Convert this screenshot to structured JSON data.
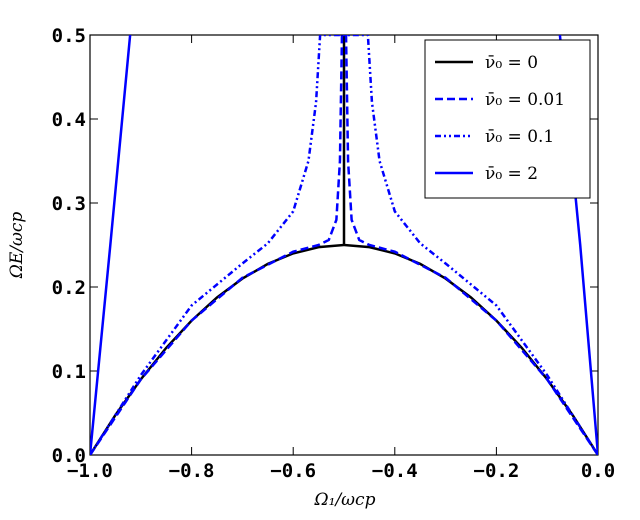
{
  "chart_data": {
    "type": "line",
    "x_label": "Ω₁/ωcp",
    "y_label": "ΩE/ωcp",
    "xlim": [
      -1,
      0
    ],
    "ylim": [
      0,
      0.5
    ],
    "xticks": [
      {
        "value": -1,
        "label": "−1.0"
      },
      {
        "value": -0.8,
        "label": "−0.8"
      },
      {
        "value": -0.6,
        "label": "−0.6"
      },
      {
        "value": -0.4,
        "label": "−0.4"
      },
      {
        "value": -0.2,
        "label": "−0.2"
      },
      {
        "value": 0,
        "label": "0.0"
      }
    ],
    "yticks": [
      {
        "value": 0,
        "label": "0.0"
      },
      0.1,
      0.2,
      0.3,
      0.4,
      0.5
    ],
    "legend": "upper right",
    "series": [
      {
        "name": "ν̄₀ = 0",
        "color": "#000000",
        "dash": "solid",
        "x": [
          -1,
          -0.95,
          -0.9,
          -0.85,
          -0.8,
          -0.75,
          -0.7,
          -0.65,
          -0.6,
          -0.55,
          -0.5,
          -0.5,
          -0.5,
          -0.45,
          -0.4,
          -0.35,
          -0.3,
          -0.25,
          -0.2,
          -0.15,
          -0.1,
          -0.05,
          0
        ],
        "values": [
          0,
          0.0475,
          0.09,
          0.1275,
          0.16,
          0.1875,
          0.21,
          0.2275,
          0.24,
          0.2475,
          0.25,
          0.5,
          0.25,
          0.2475,
          0.24,
          0.2275,
          0.21,
          0.1875,
          0.16,
          0.1275,
          0.09,
          0.0475,
          0
        ]
      },
      {
        "name": "ν̄₀ = 0.01",
        "color": "#0000ff",
        "dash": "dashed",
        "x": [
          -1,
          -0.9,
          -0.8,
          -0.7,
          -0.6,
          -0.55,
          -0.53,
          -0.515,
          -0.508,
          -0.504,
          -0.496,
          -0.492,
          -0.485,
          -0.47,
          -0.45,
          -0.4,
          -0.3,
          -0.2,
          -0.1,
          0
        ],
        "values": [
          0,
          0.09,
          0.16,
          0.211,
          0.242,
          0.25,
          0.256,
          0.28,
          0.35,
          0.5,
          0.5,
          0.35,
          0.28,
          0.256,
          0.25,
          0.242,
          0.211,
          0.16,
          0.09,
          0
        ]
      },
      {
        "name": "ν̄₀ = 0.1",
        "color": "#0000ff",
        "dash": "dashdot",
        "x": [
          -1,
          -0.9,
          -0.8,
          -0.7,
          -0.65,
          -0.6,
          -0.57,
          -0.555,
          -0.547,
          -0.453,
          -0.445,
          -0.43,
          -0.4,
          -0.35,
          -0.3,
          -0.2,
          -0.1,
          0
        ],
        "values": [
          0,
          0.095,
          0.178,
          0.228,
          0.252,
          0.29,
          0.35,
          0.42,
          0.5,
          0.5,
          0.42,
          0.35,
          0.29,
          0.252,
          0.228,
          0.178,
          0.095,
          0
        ]
      },
      {
        "name": "ν̄₀ = 2",
        "color": "#0000ff",
        "dash": "solid",
        "x": [
          -1,
          -0.96,
          -0.921,
          -0.5,
          -0.075,
          -0.035,
          0
        ],
        "values": [
          0,
          0.25,
          0.5,
          null,
          0.5,
          0.25,
          0
        ]
      }
    ]
  }
}
